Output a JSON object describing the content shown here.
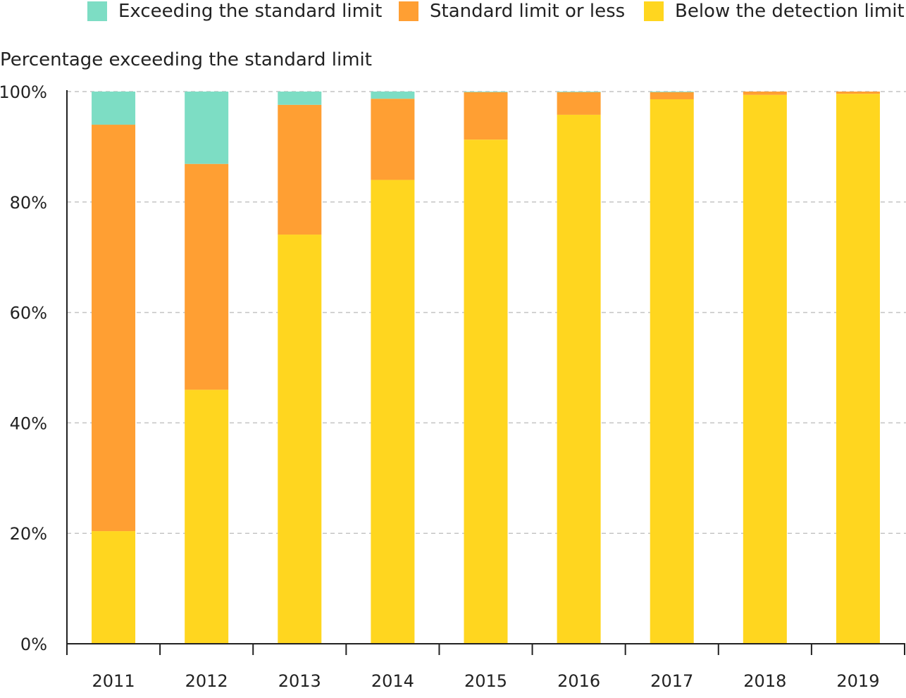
{
  "chart_data": {
    "type": "bar",
    "stacked": true,
    "title": "",
    "ylabel": "Percentage exceeding the standard limit",
    "xlabel": "",
    "ylim": [
      0,
      100
    ],
    "yticks": [
      "0%",
      "20%",
      "40%",
      "60%",
      "80%",
      "100%"
    ],
    "grid": "horizontal dashed",
    "legend_placement": "top",
    "categories": [
      "2011",
      "2012",
      "2013",
      "2014",
      "2015",
      "2016",
      "2017",
      "2018",
      "2019"
    ],
    "series": [
      {
        "name": "Below the detection limit",
        "color": "#FFD61F",
        "values": [
          20.4,
          46.0,
          74.1,
          84.0,
          91.3,
          95.8,
          98.6,
          99.4,
          99.6
        ]
      },
      {
        "name": "Standard limit or less",
        "color": "#FF9F33",
        "values": [
          73.6,
          40.9,
          23.5,
          14.7,
          8.6,
          4.1,
          1.3,
          0.6,
          0.4
        ]
      },
      {
        "name": "Exceeding the standard limit",
        "color": "#7DDDC4",
        "values": [
          6.0,
          13.1,
          2.4,
          1.3,
          0.1,
          0.1,
          0.1,
          0.0,
          0.0
        ]
      }
    ],
    "legend_order": [
      "Exceeding the standard limit",
      "Standard limit or less",
      "Below the detection limit"
    ]
  }
}
